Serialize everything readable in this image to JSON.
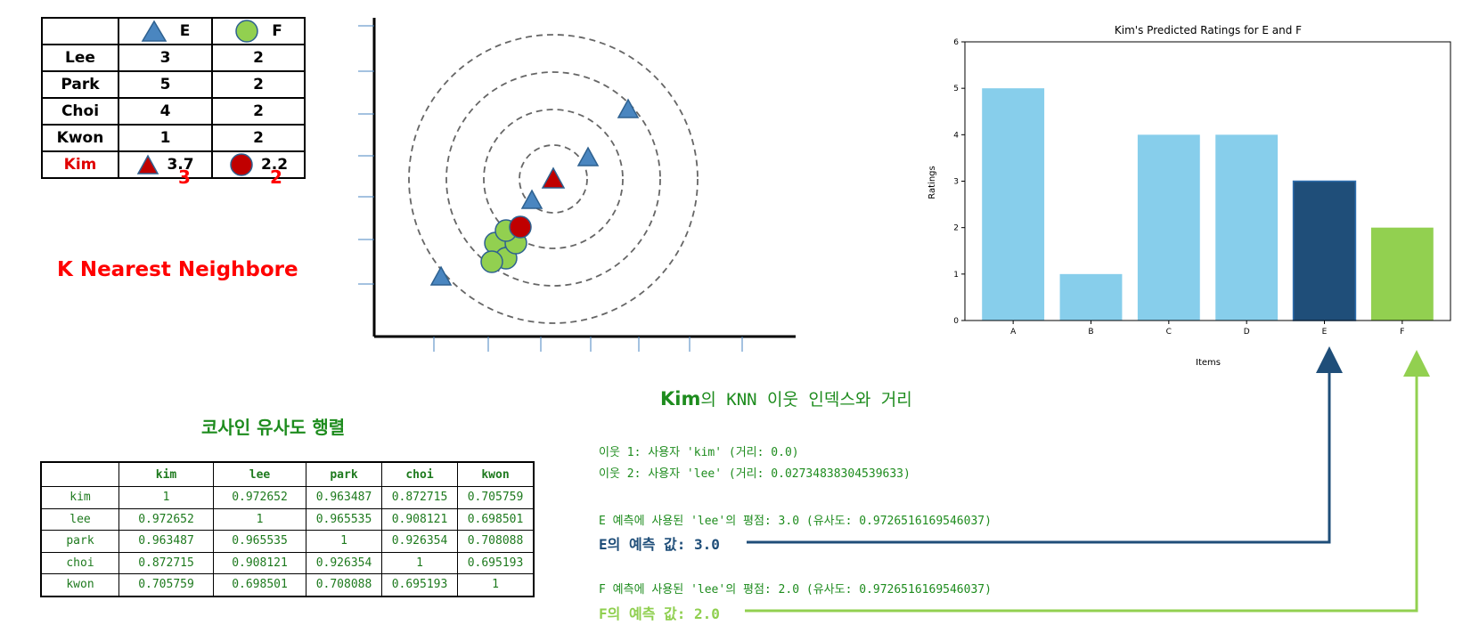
{
  "ratings_table": {
    "headers": [
      "",
      "E",
      "F"
    ],
    "rows": [
      {
        "name": "Lee",
        "e": "3",
        "f": "2"
      },
      {
        "name": "Park",
        "e": "5",
        "f": "2"
      },
      {
        "name": "Choi",
        "e": "4",
        "f": "2"
      },
      {
        "name": "Kwon",
        "e": "1",
        "f": "2"
      }
    ],
    "kim": {
      "name": "Kim",
      "e": "3.7",
      "f": "2.2",
      "e_rank": "3",
      "f_rank": "2"
    }
  },
  "knn_title": "K Nearest Neighbore",
  "cosine": {
    "title": "코사인 유사도 행렬",
    "headers": [
      "",
      "kim",
      "lee",
      "park",
      "choi",
      "kwon"
    ],
    "rows": [
      [
        "kim",
        "1",
        "0.972652",
        "0.963487",
        "0.872715",
        "0.705759"
      ],
      [
        "lee",
        "0.972652",
        "1",
        "0.965535",
        "0.908121",
        "0.698501"
      ],
      [
        "park",
        "0.963487",
        "0.965535",
        "1",
        "0.926354",
        "0.708088"
      ],
      [
        "choi",
        "0.872715",
        "0.908121",
        "0.926354",
        "1",
        "0.695193"
      ],
      [
        "kwon",
        "0.705759",
        "0.698501",
        "0.708088",
        "0.695193",
        "1"
      ]
    ]
  },
  "knn_info": {
    "heading_bold": "Kim",
    "heading_rest": "의 KNN 이웃 인덱스와 거리",
    "neighbor1": "이웃 1: 사용자 'kim' (거리: 0.0)",
    "neighbor2": "이웃 2: 사용자 'lee' (거리: 0.02734838304539633)",
    "e_used": "E 예측에 사용된 'lee'의 평점: 3.0 (유사도: 0.9726516169546037)",
    "e_pred": "E의 예측 값: 3.0",
    "f_used": "F 예측에 사용된 'lee'의 평점: 2.0 (유사도: 0.9726516169546037)",
    "f_pred": "F의 예측 값: 2.0"
  },
  "colors": {
    "bar_default": "#87ceeb",
    "bar_e": "#1f4e79",
    "bar_f": "#92d050",
    "triangle": "#4a86c0",
    "circle_green": "#92d050",
    "kim_red": "#c00000"
  },
  "chart_data": {
    "type": "bar",
    "title": "Kim's Predicted Ratings for E and F",
    "xlabel": "Items",
    "ylabel": "Ratings",
    "categories": [
      "A",
      "B",
      "C",
      "D",
      "E",
      "F"
    ],
    "values": [
      5,
      1,
      4,
      4,
      3,
      2
    ],
    "ylim": [
      0,
      6
    ],
    "yticks": [
      0,
      1,
      2,
      3,
      4,
      5,
      6
    ],
    "grid": false
  }
}
